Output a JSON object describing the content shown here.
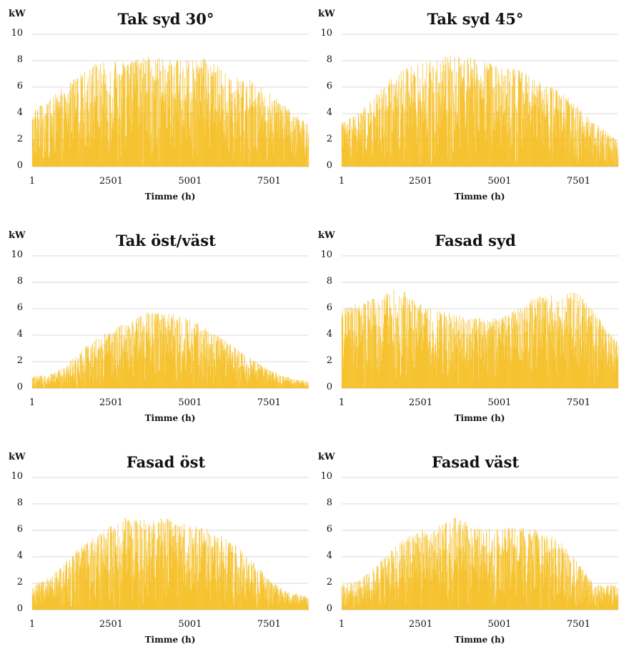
{
  "colors": {
    "series": "#f5bd1f",
    "grid": "#d9d9d9",
    "axis": "#bfbfbf"
  },
  "chart_data": [
    {
      "type": "bar",
      "title": "Tak syd 30°",
      "ylabel": "kW",
      "xlabel": "Timme (h)",
      "ylim": [
        0,
        10
      ],
      "yticks": [
        "0",
        "2",
        "4",
        "6",
        "8",
        "10"
      ],
      "xticks": [
        "1",
        "2501",
        "5001",
        "7501"
      ],
      "xlim": [
        1,
        8760
      ],
      "grid": true,
      "series": [
        {
          "envelope_x": [
            1,
            500,
            1000,
            1500,
            2000,
            2500,
            3000,
            3500,
            4000,
            4500,
            5000,
            5500,
            6000,
            6500,
            7000,
            7500,
            8000,
            8760
          ],
          "envelope_y": [
            4.2,
            5.0,
            6.0,
            7.0,
            7.8,
            8.0,
            8.2,
            8.3,
            8.2,
            8.2,
            8.1,
            8.2,
            7.6,
            7.0,
            6.5,
            5.6,
            4.6,
            3.2
          ]
        }
      ]
    },
    {
      "type": "bar",
      "title": "Tak syd 45°",
      "ylabel": "kW",
      "xlabel": "Timme (h)",
      "ylim": [
        0,
        10
      ],
      "yticks": [
        "0",
        "2",
        "4",
        "6",
        "8",
        "10"
      ],
      "xticks": [
        "1",
        "2501",
        "5001",
        "7501"
      ],
      "xlim": [
        1,
        8760
      ],
      "grid": true,
      "series": [
        {
          "envelope_x": [
            1,
            500,
            1000,
            1500,
            2000,
            2500,
            3000,
            3500,
            4000,
            4500,
            5000,
            5500,
            6000,
            6500,
            7000,
            7500,
            8000,
            8760
          ],
          "envelope_y": [
            3.4,
            4.0,
            5.2,
            6.6,
            7.5,
            7.8,
            8.2,
            8.5,
            8.3,
            8.0,
            7.7,
            7.5,
            6.8,
            6.2,
            5.6,
            4.6,
            3.4,
            1.9
          ]
        }
      ]
    },
    {
      "type": "bar",
      "title": "Tak öst/väst",
      "ylabel": "kW",
      "xlabel": "Timme (h)",
      "ylim": [
        0,
        10
      ],
      "yticks": [
        "0",
        "2",
        "4",
        "6",
        "8",
        "10"
      ],
      "xticks": [
        "1",
        "2501",
        "5001",
        "7501"
      ],
      "xlim": [
        1,
        8760
      ],
      "grid": true,
      "series": [
        {
          "envelope_x": [
            1,
            500,
            1000,
            1500,
            2000,
            2500,
            3000,
            3500,
            4000,
            4500,
            5000,
            5500,
            6000,
            6500,
            7000,
            7500,
            8000,
            8760
          ],
          "envelope_y": [
            0.9,
            1.0,
            1.6,
            2.8,
            3.8,
            4.4,
            5.0,
            5.6,
            6.1,
            5.6,
            5.3,
            4.6,
            3.8,
            3.0,
            2.2,
            1.4,
            0.9,
            0.5
          ]
        }
      ]
    },
    {
      "type": "bar",
      "title": "Fasad syd",
      "ylabel": "kW",
      "xlabel": "Timme (h)",
      "ylim": [
        0,
        10
      ],
      "yticks": [
        "0",
        "2",
        "4",
        "6",
        "8",
        "10"
      ],
      "xticks": [
        "1",
        "2501",
        "5001",
        "7501"
      ],
      "xlim": [
        1,
        8760
      ],
      "grid": true,
      "series": [
        {
          "envelope_x": [
            1,
            500,
            1000,
            1500,
            2000,
            2500,
            3000,
            3500,
            4000,
            4500,
            5000,
            5500,
            6000,
            6500,
            7000,
            7500,
            8000,
            8760
          ],
          "envelope_y": [
            6.0,
            6.4,
            6.8,
            7.5,
            7.4,
            6.4,
            6.0,
            5.7,
            5.5,
            5.3,
            5.4,
            6.0,
            6.8,
            7.1,
            7.3,
            7.2,
            5.8,
            3.5
          ]
        }
      ]
    },
    {
      "type": "bar",
      "title": "Fasad öst",
      "ylabel": "kW",
      "xlabel": "Timme (h)",
      "ylim": [
        0,
        10
      ],
      "yticks": [
        "0",
        "2",
        "4",
        "6",
        "8",
        "10"
      ],
      "xticks": [
        "1",
        "2501",
        "5001",
        "7501"
      ],
      "xlim": [
        1,
        8760
      ],
      "grid": true,
      "series": [
        {
          "envelope_x": [
            1,
            500,
            1000,
            1500,
            2000,
            2500,
            3000,
            3500,
            4000,
            4500,
            5000,
            5500,
            6000,
            6500,
            7000,
            7500,
            8000,
            8760
          ],
          "envelope_y": [
            1.8,
            2.4,
            3.4,
            4.8,
            5.6,
            6.4,
            7.0,
            6.8,
            7.1,
            6.8,
            6.4,
            6.2,
            5.6,
            4.8,
            3.6,
            2.4,
            1.4,
            1.0
          ]
        }
      ]
    },
    {
      "type": "bar",
      "title": "Fasad väst",
      "ylabel": "kW",
      "xlabel": "Timme (h)",
      "ylim": [
        0,
        10
      ],
      "yticks": [
        "0",
        "2",
        "4",
        "6",
        "8",
        "10"
      ],
      "xticks": [
        "1",
        "2501",
        "5001",
        "7501"
      ],
      "xlim": [
        1,
        8760
      ],
      "grid": true,
      "series": [
        {
          "envelope_x": [
            1,
            500,
            1000,
            1500,
            2000,
            2500,
            3000,
            3500,
            4000,
            4500,
            5000,
            5500,
            6000,
            6500,
            7000,
            7500,
            8000,
            8760
          ],
          "envelope_y": [
            1.9,
            2.2,
            3.2,
            4.4,
            5.4,
            6.0,
            6.3,
            7.1,
            6.6,
            6.2,
            6.1,
            6.3,
            6.2,
            5.8,
            5.0,
            3.5,
            2.0,
            1.8
          ]
        }
      ]
    }
  ]
}
